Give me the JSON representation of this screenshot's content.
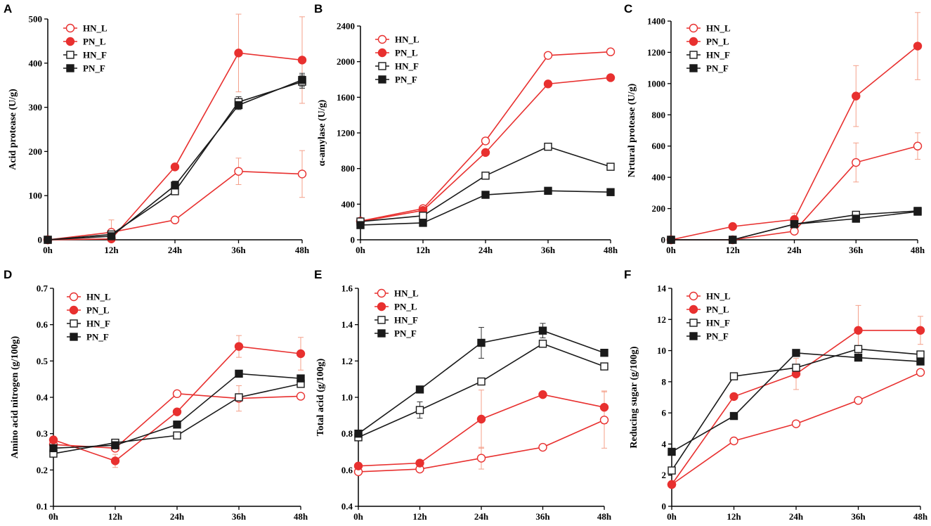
{
  "colors": {
    "red": "#e8302f",
    "black": "#1a1a1a",
    "error_red": "#f4a08a",
    "error_black": "#333333",
    "axis": "#000000"
  },
  "legend_entries": [
    {
      "name": "HN_L",
      "marker": "open-circle"
    },
    {
      "name": "PN_L",
      "marker": "filled-circle"
    },
    {
      "name": "HN_F",
      "marker": "open-square"
    },
    {
      "name": "PN_F",
      "marker": "filled-square"
    }
  ],
  "chart_data": [
    {
      "panel": "A",
      "type": "line",
      "ylabel": "Acid protease (U/g)",
      "categories": [
        "0h",
        "12h",
        "24h",
        "36h",
        "48h"
      ],
      "ylim": [
        0,
        500
      ],
      "yticks": [
        "0",
        "100",
        "200",
        "300",
        "400",
        "500"
      ],
      "legend": "top-left",
      "series": [
        {
          "name": "HN_L",
          "values": [
            0,
            17,
            45,
            155,
            149
          ],
          "errors": [
            0,
            28,
            0,
            30,
            53
          ]
        },
        {
          "name": "PN_L",
          "values": [
            0,
            2,
            165,
            423,
            407
          ],
          "errors": [
            0,
            0,
            0,
            88,
            98
          ]
        },
        {
          "name": "HN_F",
          "values": [
            0,
            12,
            110,
            312,
            358
          ],
          "errors": [
            0,
            0,
            8,
            12,
            15
          ]
        },
        {
          "name": "PN_F",
          "values": [
            0,
            8,
            123,
            305,
            362
          ],
          "errors": [
            0,
            0,
            10,
            10,
            15
          ]
        }
      ]
    },
    {
      "panel": "B",
      "type": "line",
      "ylabel": "α-amylase (U/g)",
      "categories": [
        "0h",
        "12h",
        "24h",
        "36h",
        "48h"
      ],
      "ylim": [
        0,
        2400
      ],
      "yticks": [
        "0",
        "400",
        "800",
        "1200",
        "1600",
        "2000",
        "2400"
      ],
      "legend": "top-left",
      "series": [
        {
          "name": "HN_L",
          "values": [
            210,
            350,
            1110,
            2070,
            2110
          ],
          "errors": [
            0,
            0,
            0,
            0,
            0
          ]
        },
        {
          "name": "PN_L",
          "values": [
            205,
            330,
            980,
            1750,
            1820
          ],
          "errors": [
            0,
            0,
            0,
            0,
            0
          ]
        },
        {
          "name": "HN_F",
          "values": [
            205,
            270,
            720,
            1045,
            820
          ],
          "errors": [
            0,
            0,
            0,
            0,
            0
          ]
        },
        {
          "name": "PN_F",
          "values": [
            165,
            190,
            505,
            550,
            535
          ],
          "errors": [
            0,
            0,
            0,
            0,
            0
          ]
        }
      ]
    },
    {
      "panel": "C",
      "type": "line",
      "ylabel": "Nrtural protease (U/g)",
      "categories": [
        "0h",
        "12h",
        "24h",
        "36h",
        "48h"
      ],
      "ylim": [
        0,
        1400
      ],
      "yticks": [
        "0",
        "200",
        "400",
        "600",
        "800",
        "1000",
        "1200",
        "1400"
      ],
      "legend": "top-left",
      "series": [
        {
          "name": "HN_L",
          "values": [
            0,
            0,
            55,
            495,
            600
          ],
          "errors": [
            0,
            0,
            0,
            125,
            85
          ]
        },
        {
          "name": "PN_L",
          "values": [
            0,
            85,
            130,
            920,
            1240
          ],
          "errors": [
            0,
            0,
            40,
            195,
            215
          ]
        },
        {
          "name": "HN_F",
          "values": [
            0,
            0,
            100,
            160,
            185
          ],
          "errors": [
            0,
            0,
            0,
            0,
            0
          ]
        },
        {
          "name": "PN_F",
          "values": [
            0,
            0,
            100,
            135,
            180
          ],
          "errors": [
            0,
            0,
            0,
            0,
            0
          ]
        }
      ]
    },
    {
      "panel": "D",
      "type": "line",
      "ylabel": "Amino acid nitrogen (g/100g)",
      "categories": [
        "0h",
        "12h",
        "24h",
        "36h",
        "48h"
      ],
      "ylim": [
        0.1,
        0.7
      ],
      "yticks": [
        "0.1",
        "0.2",
        "0.3",
        "0.4",
        "0.5",
        "0.6",
        "0.7"
      ],
      "legend": "top-left",
      "series": [
        {
          "name": "HN_L",
          "values": [
            0.27,
            0.26,
            0.41,
            0.397,
            0.403
          ],
          "errors": [
            0,
            0,
            0,
            0.035,
            0
          ]
        },
        {
          "name": "PN_L",
          "values": [
            0.283,
            0.225,
            0.36,
            0.54,
            0.52
          ],
          "errors": [
            0,
            0.018,
            0,
            0.03,
            0.045
          ]
        },
        {
          "name": "HN_F",
          "values": [
            0.245,
            0.275,
            0.295,
            0.4,
            0.437
          ],
          "errors": [
            0,
            0,
            0,
            0,
            0
          ]
        },
        {
          "name": "PN_F",
          "values": [
            0.26,
            0.268,
            0.325,
            0.465,
            0.452
          ],
          "errors": [
            0,
            0,
            0,
            0,
            0
          ]
        }
      ]
    },
    {
      "panel": "E",
      "type": "line",
      "ylabel": "Total acid (g/100g)",
      "categories": [
        "0h",
        "12h",
        "24h",
        "36h",
        "48h"
      ],
      "ylim": [
        0.4,
        1.6
      ],
      "yticks": [
        "0.4",
        "0.6",
        "0.8",
        "1.0",
        "1.2",
        "1.4",
        "1.6"
      ],
      "legend": "top-left",
      "series": [
        {
          "name": "HN_L",
          "values": [
            0.59,
            0.605,
            0.665,
            0.725,
            0.875
          ],
          "errors": [
            0,
            0,
            0.06,
            0,
            0.155
          ]
        },
        {
          "name": "PN_L",
          "values": [
            0.622,
            0.638,
            0.88,
            1.015,
            0.945
          ],
          "errors": [
            0,
            0,
            0.16,
            0,
            0.09
          ]
        },
        {
          "name": "HN_F",
          "values": [
            0.78,
            0.93,
            1.087,
            1.295,
            1.17
          ],
          "errors": [
            0,
            0.045,
            0,
            0,
            0
          ]
        },
        {
          "name": "PN_F",
          "values": [
            0.8,
            1.043,
            1.3,
            1.367,
            1.245
          ],
          "errors": [
            0,
            0,
            0.085,
            0.04,
            0
          ]
        }
      ]
    },
    {
      "panel": "F",
      "type": "line",
      "ylabel": "Reducing sugar (g/100g)",
      "categories": [
        "0h",
        "12h",
        "24h",
        "36h",
        "48h"
      ],
      "ylim": [
        0,
        14
      ],
      "yticks": [
        "0",
        "2",
        "4",
        "6",
        "8",
        "10",
        "12",
        "14"
      ],
      "legend": "top-left",
      "series": [
        {
          "name": "HN_L",
          "values": [
            1.4,
            4.2,
            5.3,
            6.8,
            8.6
          ],
          "errors": [
            0,
            0,
            0,
            0,
            0
          ]
        },
        {
          "name": "PN_L",
          "values": [
            1.4,
            7.05,
            8.5,
            11.3,
            11.3
          ],
          "errors": [
            0,
            0,
            1.0,
            1.6,
            0.9
          ]
        },
        {
          "name": "HN_F",
          "values": [
            2.3,
            8.35,
            8.9,
            10.1,
            9.75
          ],
          "errors": [
            0,
            0,
            0,
            0,
            0
          ]
        },
        {
          "name": "PN_F",
          "values": [
            3.5,
            5.8,
            9.85,
            9.55,
            9.3
          ],
          "errors": [
            0,
            0,
            0,
            0,
            0
          ]
        }
      ]
    }
  ]
}
